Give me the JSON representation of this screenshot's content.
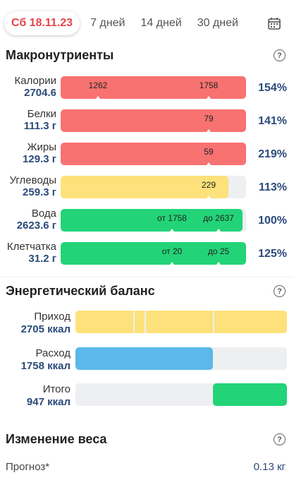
{
  "tabs": {
    "active": "Сб 18.11.23",
    "week": "7 дней",
    "two_weeks": "14 дней",
    "month": "30 дней",
    "calendar_icon": "calendar-icon"
  },
  "macros": {
    "title": "Макронутриенты",
    "rows": [
      {
        "name": "Калории",
        "value": "2704.6",
        "fill": 1.0,
        "color": "#f87272",
        "marker_a": "1262",
        "marker_b": "1758",
        "pct": "154%"
      },
      {
        "name": "Белки",
        "value": "111.3 г",
        "fill": 1.0,
        "color": "#f87272",
        "marker_a": "",
        "marker_b": "79",
        "pct": "141%"
      },
      {
        "name": "Жиры",
        "value": "129.3 г",
        "fill": 1.0,
        "color": "#f87272",
        "marker_a": "",
        "marker_b": "59",
        "pct": "219%"
      },
      {
        "name": "Углеводы",
        "value": "259.3 г",
        "fill": 0.905,
        "color": "#fde17a",
        "marker_a": "",
        "marker_b": "229",
        "pct": "113%"
      },
      {
        "name": "Вода",
        "value": "2623.6 г",
        "fill": 0.98,
        "color": "#22d477",
        "marker_a": "от 1758",
        "marker_b": "до 2637",
        "pct": "100%"
      },
      {
        "name": "Клетчатка",
        "value": "31.2 г",
        "fill": 1.0,
        "color": "#22d477",
        "marker_a": "от 20",
        "marker_b": "до 25",
        "pct": "125%"
      }
    ]
  },
  "energy": {
    "title": "Энергетический баланс",
    "income_label": "Приход",
    "income_value": "2705 ккал",
    "expense_label": "Расход",
    "expense_value": "1758 ккал",
    "total_label": "Итого",
    "total_value": "947 ккал",
    "colors": {
      "income": "#fde17a",
      "expense": "#5bb8ea",
      "total": "#22d477"
    }
  },
  "weight": {
    "title": "Изменение веса",
    "forecast_label": "Прогноз*",
    "forecast_value": "0.13 кг"
  }
}
